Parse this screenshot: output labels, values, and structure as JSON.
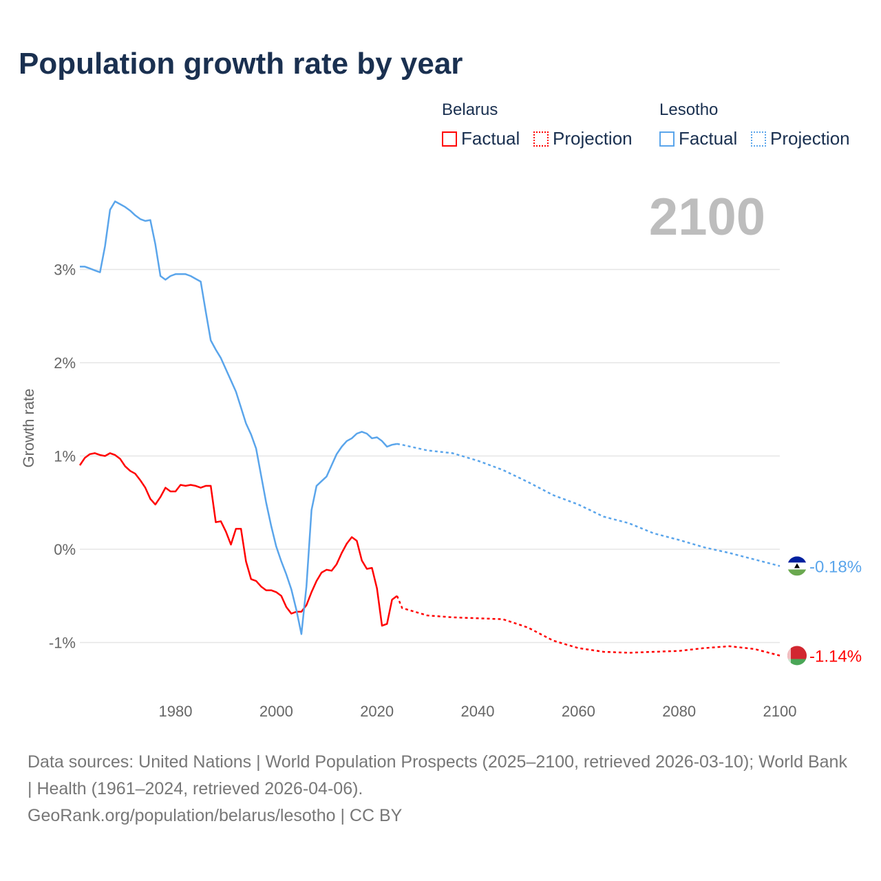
{
  "chart_data": {
    "type": "line",
    "title": "Population growth rate by year",
    "ylabel": "Growth rate",
    "xlabel": "",
    "xlim": [
      1961,
      2100
    ],
    "ylim": [
      -1.5,
      4
    ],
    "x_ticks": [
      1980,
      2000,
      2020,
      2040,
      2060,
      2080,
      2100
    ],
    "x_tick_labels": [
      "1980",
      "2000",
      "2020",
      "2040",
      "2060",
      "2080",
      "2100"
    ],
    "y_ticks": [
      3,
      2,
      1,
      0,
      -1
    ],
    "y_tick_labels": [
      "3%",
      "2%",
      "1%",
      "0%",
      "-1%"
    ],
    "grid": true,
    "current_year": "2100",
    "legend": {
      "placement": "top-right",
      "groups": [
        {
          "name": "Belarus",
          "items": [
            "Factual",
            "Projection"
          ]
        },
        {
          "name": "Lesotho",
          "items": [
            "Factual",
            "Projection"
          ]
        }
      ]
    },
    "series": [
      {
        "name": "Belarus",
        "color": "#ff0000",
        "end_label": "-1.14%",
        "factual": {
          "x": [
            1961,
            1962,
            1963,
            1964,
            1965,
            1966,
            1967,
            1968,
            1969,
            1970,
            1971,
            1972,
            1973,
            1974,
            1975,
            1976,
            1977,
            1978,
            1979,
            1980,
            1981,
            1982,
            1983,
            1984,
            1985,
            1986,
            1987,
            1988,
            1989,
            1990,
            1991,
            1992,
            1993,
            1994,
            1995,
            1996,
            1997,
            1998,
            1999,
            2000,
            2001,
            2002,
            2003,
            2004,
            2005,
            2006,
            2007,
            2008,
            2009,
            2010,
            2011,
            2012,
            2013,
            2014,
            2015,
            2016,
            2017,
            2018,
            2019,
            2020,
            2021,
            2022,
            2023,
            2024
          ],
          "y": [
            0.9,
            0.98,
            1.02,
            1.03,
            1.01,
            1.0,
            1.03,
            1.01,
            0.97,
            0.89,
            0.84,
            0.81,
            0.74,
            0.66,
            0.54,
            0.48,
            0.56,
            0.66,
            0.62,
            0.62,
            0.69,
            0.68,
            0.69,
            0.68,
            0.66,
            0.68,
            0.68,
            0.29,
            0.3,
            0.19,
            0.05,
            0.22,
            0.22,
            -0.13,
            -0.32,
            -0.34,
            -0.4,
            -0.44,
            -0.44,
            -0.46,
            -0.5,
            -0.62,
            -0.69,
            -0.67,
            -0.67,
            -0.6,
            -0.46,
            -0.34,
            -0.25,
            -0.22,
            -0.23,
            -0.16,
            -0.04,
            0.06,
            0.13,
            0.09,
            -0.12,
            -0.21,
            -0.2,
            -0.42,
            -0.82,
            -0.8,
            -0.54,
            -0.5
          ]
        },
        "projection": {
          "x": [
            2024,
            2025,
            2030,
            2035,
            2040,
            2045,
            2050,
            2055,
            2060,
            2065,
            2070,
            2075,
            2080,
            2085,
            2090,
            2095,
            2100
          ],
          "y": [
            -0.5,
            -0.63,
            -0.71,
            -0.73,
            -0.74,
            -0.75,
            -0.84,
            -0.98,
            -1.06,
            -1.1,
            -1.11,
            -1.1,
            -1.09,
            -1.06,
            -1.04,
            -1.07,
            -1.14
          ]
        }
      },
      {
        "name": "Lesotho",
        "color": "#5aa5eb",
        "end_label": "-0.18%",
        "factual": {
          "x": [
            1961,
            1962,
            1963,
            1964,
            1965,
            1966,
            1967,
            1968,
            1969,
            1970,
            1971,
            1972,
            1973,
            1974,
            1975,
            1976,
            1977,
            1978,
            1979,
            1980,
            1981,
            1982,
            1983,
            1984,
            1985,
            1986,
            1987,
            1988,
            1989,
            1990,
            1991,
            1992,
            1993,
            1994,
            1995,
            1996,
            1997,
            1998,
            1999,
            2000,
            2001,
            2002,
            2003,
            2004,
            2005,
            2006,
            2007,
            2008,
            2009,
            2010,
            2011,
            2012,
            2013,
            2014,
            2015,
            2016,
            2017,
            2018,
            2019,
            2020,
            2021,
            2022,
            2023,
            2024
          ],
          "y": [
            3.03,
            3.03,
            3.01,
            2.99,
            2.97,
            3.25,
            3.64,
            3.73,
            3.7,
            3.67,
            3.63,
            3.58,
            3.54,
            3.52,
            3.53,
            3.27,
            2.93,
            2.89,
            2.93,
            2.95,
            2.95,
            2.95,
            2.93,
            2.9,
            2.87,
            2.55,
            2.24,
            2.14,
            2.05,
            1.93,
            1.81,
            1.69,
            1.52,
            1.35,
            1.23,
            1.08,
            0.79,
            0.5,
            0.25,
            0.03,
            -0.13,
            -0.27,
            -0.43,
            -0.65,
            -0.91,
            -0.4,
            0.42,
            0.68,
            0.73,
            0.78,
            0.9,
            1.02,
            1.1,
            1.16,
            1.19,
            1.24,
            1.26,
            1.24,
            1.19,
            1.2,
            1.16,
            1.1,
            1.12,
            1.13
          ]
        },
        "projection": {
          "x": [
            2024,
            2025,
            2030,
            2035,
            2040,
            2045,
            2050,
            2055,
            2060,
            2065,
            2070,
            2075,
            2080,
            2085,
            2090,
            2095,
            2100
          ],
          "y": [
            1.13,
            1.12,
            1.06,
            1.03,
            0.95,
            0.85,
            0.72,
            0.58,
            0.48,
            0.35,
            0.28,
            0.17,
            0.1,
            0.02,
            -0.04,
            -0.11,
            -0.18
          ]
        }
      }
    ]
  },
  "legend": {
    "belarus": "Belarus",
    "lesotho": "Lesotho",
    "factual": "Factual",
    "projection": "Projection"
  },
  "footer": {
    "line1": "Data sources: United Nations | World Population Prospects (2025–2100, retrieved 2026-03-10); World Bank | Health (1961–2024, retrieved 2026-04-06).",
    "line2": "GeoRank.org/population/belarus/lesotho | CC BY"
  }
}
